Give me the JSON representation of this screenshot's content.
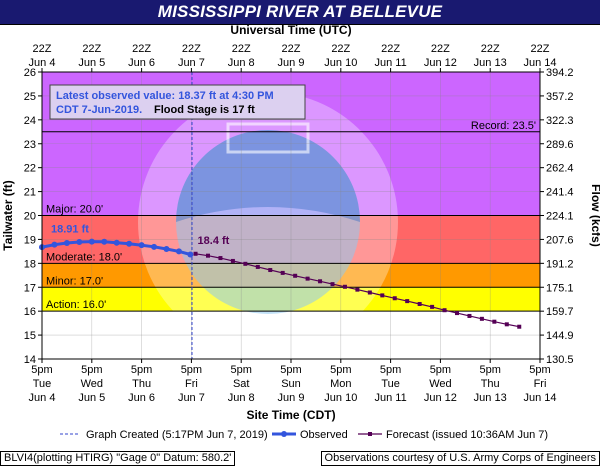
{
  "header": {
    "title": "MISSISSIPPI RIVER AT BELLEVUE"
  },
  "top_axis": {
    "label": "Universal Time (UTC)",
    "ticks": [
      {
        "top": "22Z",
        "bottom": "Jun 4"
      },
      {
        "top": "22Z",
        "bottom": "Jun 5"
      },
      {
        "top": "22Z",
        "bottom": "Jun 6"
      },
      {
        "top": "22Z",
        "bottom": "Jun 7"
      },
      {
        "top": "22Z",
        "bottom": "Jun 8"
      },
      {
        "top": "22Z",
        "bottom": "Jun 9"
      },
      {
        "top": "22Z",
        "bottom": "Jun 10"
      },
      {
        "top": "22Z",
        "bottom": "Jun 11"
      },
      {
        "top": "22Z",
        "bottom": "Jun 12"
      },
      {
        "top": "22Z",
        "bottom": "Jun 13"
      },
      {
        "top": "22Z",
        "bottom": "Jun 14"
      }
    ]
  },
  "info_box": {
    "line1": "Latest observed value: 18.37 ft at 4:30 PM",
    "line2_blue": "CDT 7-Jun-2019.",
    "line2_black": "Flood Stage is 17 ft"
  },
  "footer": {
    "left": "BLVI4(plotting HTIRG) \"Gage 0\" Datum: 580.2'",
    "right": "Observations courtesy of U.S. Army Corps of Engineers"
  },
  "colors": {
    "title_bg": "#191970",
    "major_band": "#cc66ff",
    "moderate_band": "#ff6666",
    "minor_band": "#ff9900",
    "action_band": "#ffff00",
    "observed": "#3355dd",
    "forecast": "#550055"
  },
  "chart_data": {
    "type": "line",
    "title": "MISSISSIPPI RIVER AT BELLEVUE",
    "xlabel": "Site Time (CDT)",
    "ylabel": "Tailwater (ft)",
    "y2label": "Flow (kcfs)",
    "ylim": [
      14,
      26
    ],
    "yticks": [
      14,
      15,
      16,
      17,
      18,
      19,
      20,
      21,
      22,
      23,
      24,
      25,
      26
    ],
    "y2ticks": [
      "130.5",
      "144.9",
      "159.7",
      "175.1",
      "191.2",
      "207.6",
      "224.1",
      "241.4",
      "262.4",
      "289.6",
      "322.3",
      "357.2",
      "394.2"
    ],
    "x_range": [
      "2019-06-04 17:00",
      "2019-06-14 17:00"
    ],
    "xticks": [
      {
        "time": "5pm",
        "day": "Tue",
        "date": "Jun 4"
      },
      {
        "time": "5pm",
        "day": "Wed",
        "date": "Jun 5"
      },
      {
        "time": "5pm",
        "day": "Thu",
        "date": "Jun 6"
      },
      {
        "time": "5pm",
        "day": "Fri",
        "date": "Jun 7"
      },
      {
        "time": "5pm",
        "day": "Sat",
        "date": "Jun 8"
      },
      {
        "time": "5pm",
        "day": "Sun",
        "date": "Jun 9"
      },
      {
        "time": "5pm",
        "day": "Mon",
        "date": "Jun 10"
      },
      {
        "time": "5pm",
        "day": "Tue",
        "date": "Jun 11"
      },
      {
        "time": "5pm",
        "day": "Wed",
        "date": "Jun 12"
      },
      {
        "time": "5pm",
        "day": "Thu",
        "date": "Jun 13"
      },
      {
        "time": "5pm",
        "day": "Fri",
        "date": "Jun 14"
      }
    ],
    "flood_categories": [
      {
        "name": "Action",
        "label": "Action: 16.0'",
        "stage": 16.0,
        "top": 17.0
      },
      {
        "name": "Minor",
        "label": "Minor: 17.0'",
        "stage": 17.0,
        "top": 18.0
      },
      {
        "name": "Moderate",
        "label": "Moderate: 18.0'",
        "stage": 18.0,
        "top": 20.0
      },
      {
        "name": "Major",
        "label": "Major: 20.0'",
        "stage": 20.0,
        "top": 26.0
      }
    ],
    "record": {
      "label": "Record: 23.5'",
      "value": 23.5
    },
    "graph_created": "2019-06-07 17:17",
    "series": [
      {
        "name": "Observed",
        "peak_label": "18.91 ft",
        "points": [
          [
            "2019-06-04 17:00",
            18.68
          ],
          [
            "2019-06-04 23:00",
            18.78
          ],
          [
            "2019-06-05 05:00",
            18.85
          ],
          [
            "2019-06-05 11:00",
            18.89
          ],
          [
            "2019-06-05 17:00",
            18.91
          ],
          [
            "2019-06-05 23:00",
            18.9
          ],
          [
            "2019-06-06 05:00",
            18.86
          ],
          [
            "2019-06-06 11:00",
            18.82
          ],
          [
            "2019-06-06 17:00",
            18.76
          ],
          [
            "2019-06-06 23:00",
            18.69
          ],
          [
            "2019-06-07 05:00",
            18.6
          ],
          [
            "2019-06-07 11:00",
            18.5
          ],
          [
            "2019-06-07 16:30",
            18.37
          ]
        ]
      },
      {
        "name": "Forecast (issued 10:36AM Jun 7)",
        "first_label": "18.4 ft",
        "points": [
          [
            "2019-06-07 19:00",
            18.4
          ],
          [
            "2019-06-08 01:00",
            18.32
          ],
          [
            "2019-06-08 07:00",
            18.22
          ],
          [
            "2019-06-08 13:00",
            18.1
          ],
          [
            "2019-06-08 19:00",
            17.98
          ],
          [
            "2019-06-09 01:00",
            17.85
          ],
          [
            "2019-06-09 07:00",
            17.72
          ],
          [
            "2019-06-09 13:00",
            17.6
          ],
          [
            "2019-06-09 19:00",
            17.48
          ],
          [
            "2019-06-10 01:00",
            17.36
          ],
          [
            "2019-06-10 07:00",
            17.25
          ],
          [
            "2019-06-10 13:00",
            17.13
          ],
          [
            "2019-06-10 19:00",
            17.02
          ],
          [
            "2019-06-11 01:00",
            16.9
          ],
          [
            "2019-06-11 07:00",
            16.78
          ],
          [
            "2019-06-11 13:00",
            16.66
          ],
          [
            "2019-06-11 19:00",
            16.54
          ],
          [
            "2019-06-12 01:00",
            16.42
          ],
          [
            "2019-06-12 07:00",
            16.3
          ],
          [
            "2019-06-12 13:00",
            16.18
          ],
          [
            "2019-06-12 19:00",
            16.04
          ],
          [
            "2019-06-13 01:00",
            15.92
          ],
          [
            "2019-06-13 07:00",
            15.8
          ],
          [
            "2019-06-13 13:00",
            15.68
          ],
          [
            "2019-06-13 19:00",
            15.56
          ],
          [
            "2019-06-14 01:00",
            15.45
          ],
          [
            "2019-06-14 07:00",
            15.35
          ]
        ]
      }
    ],
    "legend": [
      {
        "key": "created",
        "label": "Graph Created (5:17PM Jun 7, 2019)"
      },
      {
        "key": "observed",
        "label": "Observed"
      },
      {
        "key": "forecast",
        "label": "Forecast (issued 10:36AM Jun 7)"
      }
    ]
  }
}
